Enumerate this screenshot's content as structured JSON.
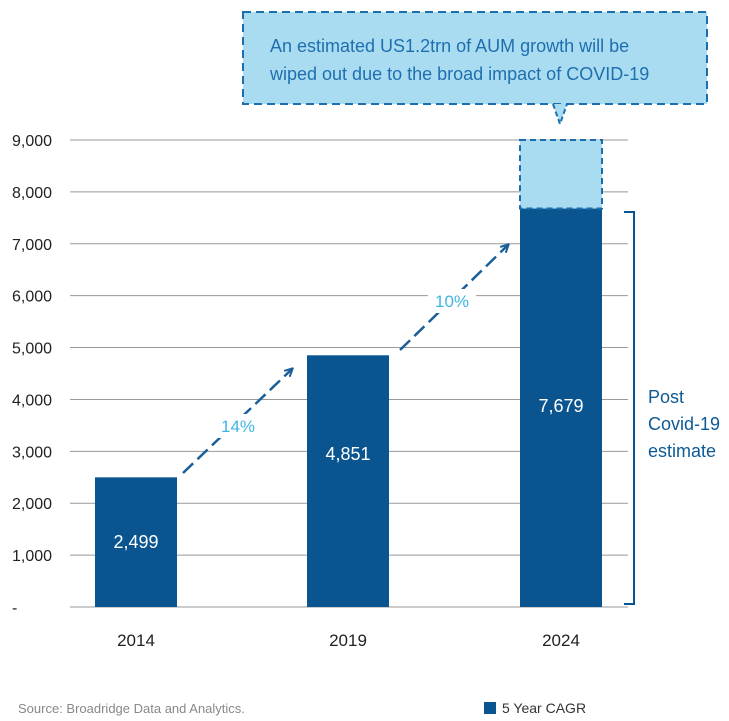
{
  "chart_data": {
    "type": "bar",
    "categories": [
      "2014",
      "2019",
      "2024"
    ],
    "values": [
      2499,
      4851,
      7679
    ],
    "value_labels": [
      "2,499",
      "4,851",
      "7,679"
    ],
    "covid_impact_top": 9000,
    "y_ticks": [
      {
        "value": 0,
        "label": "-"
      },
      {
        "value": 1000,
        "label": "1,000"
      },
      {
        "value": 2000,
        "label": "2,000"
      },
      {
        "value": 3000,
        "label": "3,000"
      },
      {
        "value": 4000,
        "label": "4,000"
      },
      {
        "value": 5000,
        "label": "5,000"
      },
      {
        "value": 6000,
        "label": "6,000"
      },
      {
        "value": 7000,
        "label": "7,000"
      },
      {
        "value": 8000,
        "label": "8,000"
      },
      {
        "value": 9000,
        "label": "9,000"
      }
    ],
    "ylim": [
      0,
      9000
    ],
    "grid": true,
    "cagr": [
      {
        "from": "2014",
        "to": "2019",
        "label": "14%"
      },
      {
        "from": "2019",
        "to": "2024",
        "label": "10%"
      }
    ],
    "bracket_label": [
      "Post",
      "Covid-19",
      "estimate"
    ],
    "callout": [
      "An estimated US1.2trn of AUM growth will be",
      "wiped out due to the broad impact of COVID-19"
    ],
    "legend": [
      "5 Year CAGR"
    ],
    "source": "Source: Broadridge Data and Analytics.",
    "colors": {
      "bar": "#0a5590",
      "impact": "#a9dcf0",
      "impact_border": "#1c6fae",
      "callout_fill": "#a9dcf0",
      "arrow": "#1a5f99",
      "cagr_text": "#3fb5e2",
      "grid": "#999999"
    }
  }
}
